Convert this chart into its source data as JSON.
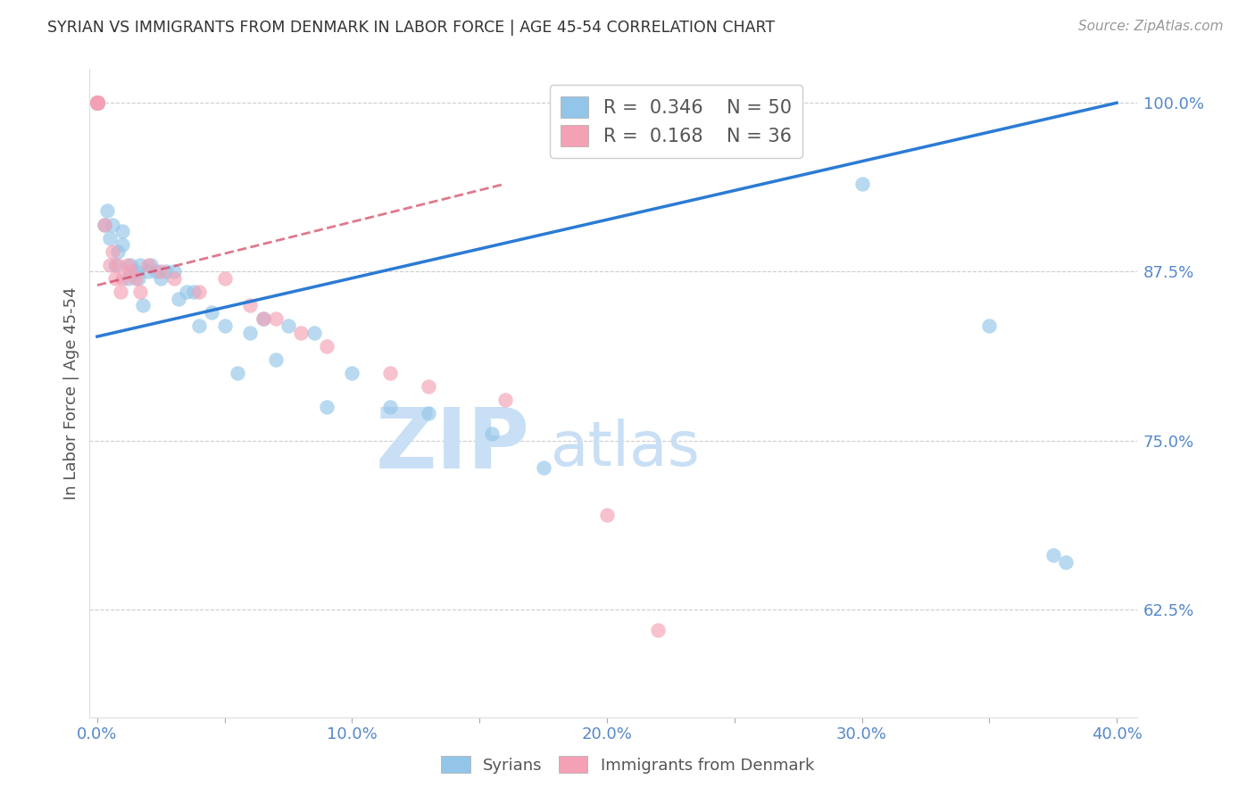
{
  "title": "SYRIAN VS IMMIGRANTS FROM DENMARK IN LABOR FORCE | AGE 45-54 CORRELATION CHART",
  "source": "Source: ZipAtlas.com",
  "ylabel": "In Labor Force | Age 45-54",
  "xlim": [
    -0.003,
    0.408
  ],
  "ylim": [
    0.545,
    1.025
  ],
  "blue_color": "#92C5E8",
  "pink_color": "#F4A0B5",
  "blue_line_color": "#2B7BD4",
  "pink_line_color": "#D04060",
  "axis_label_color": "#5588CC",
  "title_color": "#333333",
  "watermark_zip": "ZIP",
  "watermark_atlas": "atlas",
  "watermark_color": "#C8DFF5",
  "legend_R1": "0.346",
  "legend_N1": "50",
  "legend_R2": "0.168",
  "legend_N2": "36",
  "blue_line_x0": 0.0,
  "blue_line_y0": 0.827,
  "blue_line_x1": 0.4,
  "blue_line_y1": 1.0,
  "pink_line_x0": 0.0,
  "pink_line_y0": 0.865,
  "pink_line_x1": 0.16,
  "pink_line_y1": 0.94,
  "syrians_x": [
    0.0,
    0.0,
    0.0,
    0.0,
    0.0,
    0.0,
    0.0,
    0.0,
    0.003,
    0.004,
    0.005,
    0.006,
    0.007,
    0.008,
    0.01,
    0.01,
    0.012,
    0.013,
    0.015,
    0.016,
    0.017,
    0.018,
    0.02,
    0.021,
    0.023,
    0.025,
    0.027,
    0.03,
    0.032,
    0.035,
    0.038,
    0.04,
    0.045,
    0.05,
    0.055,
    0.06,
    0.065,
    0.07,
    0.075,
    0.085,
    0.09,
    0.1,
    0.115,
    0.13,
    0.155,
    0.175,
    0.3,
    0.35,
    0.375,
    0.38
  ],
  "syrians_y": [
    1.0,
    1.0,
    1.0,
    1.0,
    1.0,
    1.0,
    1.0,
    1.0,
    0.91,
    0.92,
    0.9,
    0.91,
    0.88,
    0.89,
    0.895,
    0.905,
    0.87,
    0.88,
    0.875,
    0.87,
    0.88,
    0.85,
    0.875,
    0.88,
    0.875,
    0.87,
    0.875,
    0.875,
    0.855,
    0.86,
    0.86,
    0.835,
    0.845,
    0.835,
    0.8,
    0.83,
    0.84,
    0.81,
    0.835,
    0.83,
    0.775,
    0.8,
    0.775,
    0.77,
    0.755,
    0.73,
    0.94,
    0.835,
    0.665,
    0.66
  ],
  "denmark_x": [
    0.0,
    0.0,
    0.0,
    0.0,
    0.0,
    0.0,
    0.0,
    0.0,
    0.0,
    0.0,
    0.003,
    0.005,
    0.006,
    0.007,
    0.008,
    0.009,
    0.01,
    0.012,
    0.013,
    0.015,
    0.017,
    0.02,
    0.025,
    0.03,
    0.04,
    0.05,
    0.06,
    0.065,
    0.07,
    0.08,
    0.09,
    0.115,
    0.13,
    0.16,
    0.2,
    0.22
  ],
  "denmark_y": [
    1.0,
    1.0,
    1.0,
    1.0,
    1.0,
    1.0,
    1.0,
    1.0,
    1.0,
    1.0,
    0.91,
    0.88,
    0.89,
    0.87,
    0.88,
    0.86,
    0.87,
    0.88,
    0.875,
    0.87,
    0.86,
    0.88,
    0.875,
    0.87,
    0.86,
    0.87,
    0.85,
    0.84,
    0.84,
    0.83,
    0.82,
    0.8,
    0.79,
    0.78,
    0.695,
    0.61
  ]
}
